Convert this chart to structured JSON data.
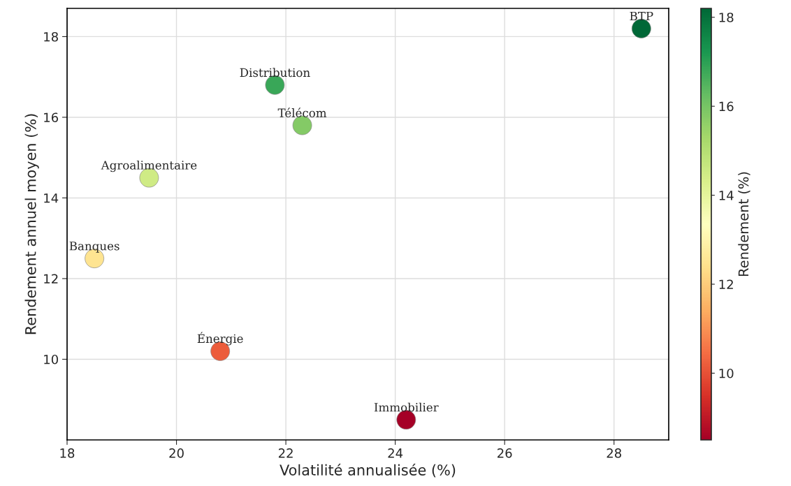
{
  "chart_data": {
    "type": "scatter",
    "xlabel": "Volatilité annualisée (%)",
    "ylabel": "Rendement annuel moyen (%)",
    "clabel": "Rendement (%)",
    "x": [
      18.5,
      19.5,
      20.8,
      21.8,
      22.3,
      24.2,
      28.5
    ],
    "values": [
      12.5,
      14.5,
      10.2,
      16.8,
      15.8,
      8.5,
      18.2
    ],
    "cvalues": [
      12.5,
      14.5,
      10.2,
      16.8,
      15.8,
      8.5,
      18.2
    ],
    "clim": [
      8.5,
      18.2
    ],
    "cticks": [
      10,
      12,
      14,
      16,
      18
    ],
    "xlim": [
      18,
      29
    ],
    "xticks": [
      18,
      20,
      22,
      24,
      26,
      28
    ],
    "ylim": [
      8.0,
      18.7
    ],
    "yticks": [
      10,
      12,
      14,
      16,
      18
    ],
    "grid": true,
    "marker": "circle",
    "annotations": [
      {
        "text": "Banques",
        "x": 18.5,
        "y": 12.5
      },
      {
        "text": "Agroalimentaire",
        "x": 19.5,
        "y": 14.5
      },
      {
        "text": "Énergie",
        "x": 20.8,
        "y": 10.2
      },
      {
        "text": "Distribution",
        "x": 21.8,
        "y": 16.8
      },
      {
        "text": "Télécom",
        "x": 22.3,
        "y": 15.8
      },
      {
        "text": "Immobilier",
        "x": 24.2,
        "y": 8.5
      },
      {
        "text": "BTP",
        "x": 28.5,
        "y": 18.2
      }
    ]
  }
}
